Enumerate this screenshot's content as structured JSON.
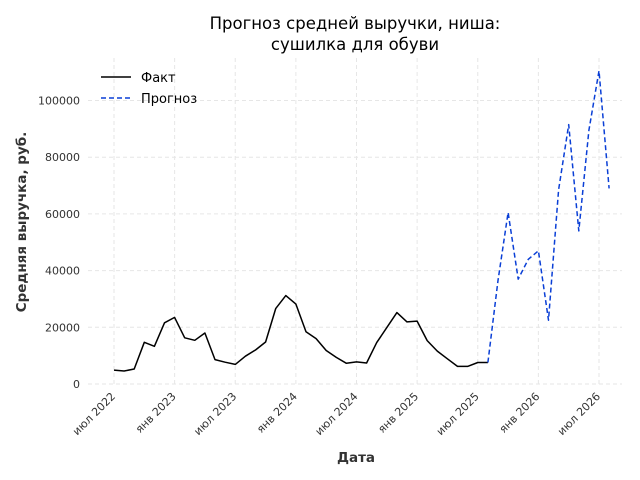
{
  "chart_data": {
    "type": "line",
    "title_line1": "Прогноз средней выручки, ниша:",
    "title_line2": "сушилка для обуви",
    "xlabel": "Дата",
    "ylabel": "Средняя выручка, руб.",
    "ylim": [
      0,
      115000
    ],
    "yticks": [
      0,
      20000,
      40000,
      60000,
      80000,
      100000
    ],
    "ytick_labels": [
      "0",
      "20000",
      "40000",
      "60000",
      "80000",
      "100000"
    ],
    "xticks": [
      "2022-07",
      "2023-01",
      "2023-07",
      "2024-01",
      "2024-07",
      "2025-01",
      "2025-07",
      "2026-01",
      "2026-07"
    ],
    "xtick_labels": [
      "июл 2022",
      "янв 2023",
      "июл 2023",
      "янв 2024",
      "июл 2024",
      "янв 2025",
      "июл 2025",
      "янв 2026",
      "июл 2026"
    ],
    "grid": true,
    "legend_position": "top-left",
    "series": [
      {
        "name": "Факт",
        "color": "#000000",
        "style": "solid",
        "x": [
          "2022-07",
          "2022-08",
          "2022-09",
          "2022-10",
          "2022-11",
          "2022-12",
          "2023-01",
          "2023-02",
          "2023-03",
          "2023-04",
          "2023-05",
          "2023-06",
          "2023-07",
          "2023-08",
          "2023-09",
          "2023-10",
          "2023-11",
          "2023-12",
          "2024-01",
          "2024-02",
          "2024-03",
          "2024-04",
          "2024-05",
          "2024-06",
          "2024-07",
          "2024-08",
          "2024-09",
          "2024-10",
          "2024-11",
          "2024-12",
          "2025-01",
          "2025-02",
          "2025-03",
          "2025-04",
          "2025-05",
          "2025-06",
          "2025-07",
          "2025-08"
        ],
        "y": [
          4900,
          4600,
          5300,
          14700,
          13300,
          21600,
          23500,
          16300,
          15400,
          18000,
          8600,
          7700,
          6900,
          9800,
          12000,
          14800,
          26600,
          31200,
          28200,
          18400,
          16000,
          11800,
          9400,
          7300,
          7800,
          7400,
          14600,
          19900,
          25200,
          21900,
          22200,
          15300,
          11600,
          8900,
          6200,
          6200,
          7600,
          7600
        ]
      },
      {
        "name": "Прогноз",
        "color": "#0a3fd6",
        "style": "dashed",
        "x": [
          "2025-08",
          "2025-09",
          "2025-10",
          "2025-11",
          "2025-12",
          "2026-01",
          "2026-02",
          "2026-03",
          "2026-04",
          "2026-05",
          "2026-06",
          "2026-07",
          "2026-08"
        ],
        "y": [
          7600,
          36500,
          60500,
          37000,
          44000,
          47000,
          22500,
          68500,
          91500,
          54000,
          89500,
          110500,
          69000
        ]
      }
    ]
  }
}
